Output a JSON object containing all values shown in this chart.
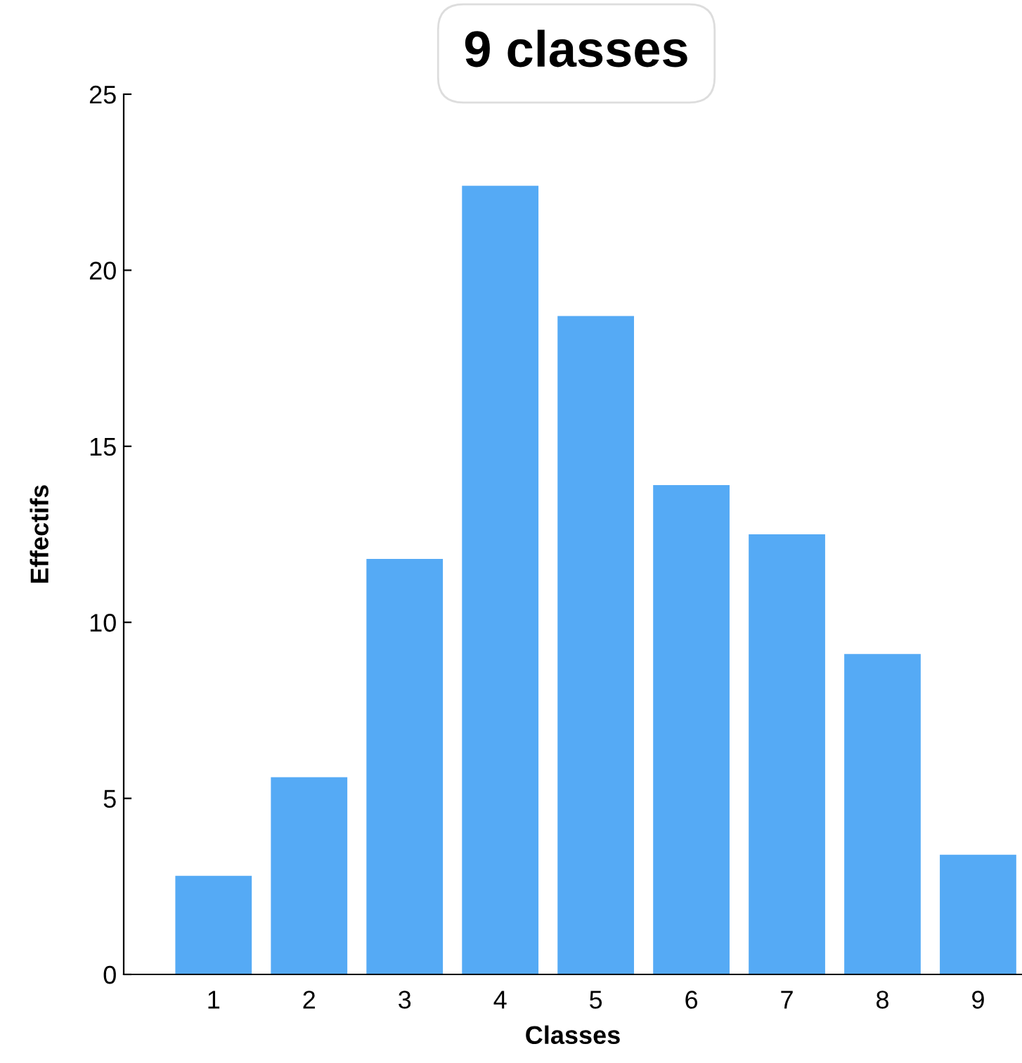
{
  "chart_data": {
    "type": "bar",
    "title": "9 classes",
    "xlabel": "Classes",
    "ylabel": "Effectifs",
    "categories": [
      "1",
      "2",
      "3",
      "4",
      "5",
      "6",
      "7",
      "8",
      "9"
    ],
    "values": [
      2.8,
      5.6,
      11.8,
      22.4,
      18.7,
      13.9,
      12.5,
      9.1,
      3.4
    ],
    "color": "#55aaf5",
    "ylim": [
      0,
      25
    ],
    "yticks": [
      0,
      5,
      10,
      15,
      20,
      25
    ],
    "grid": false,
    "legend": false
  }
}
